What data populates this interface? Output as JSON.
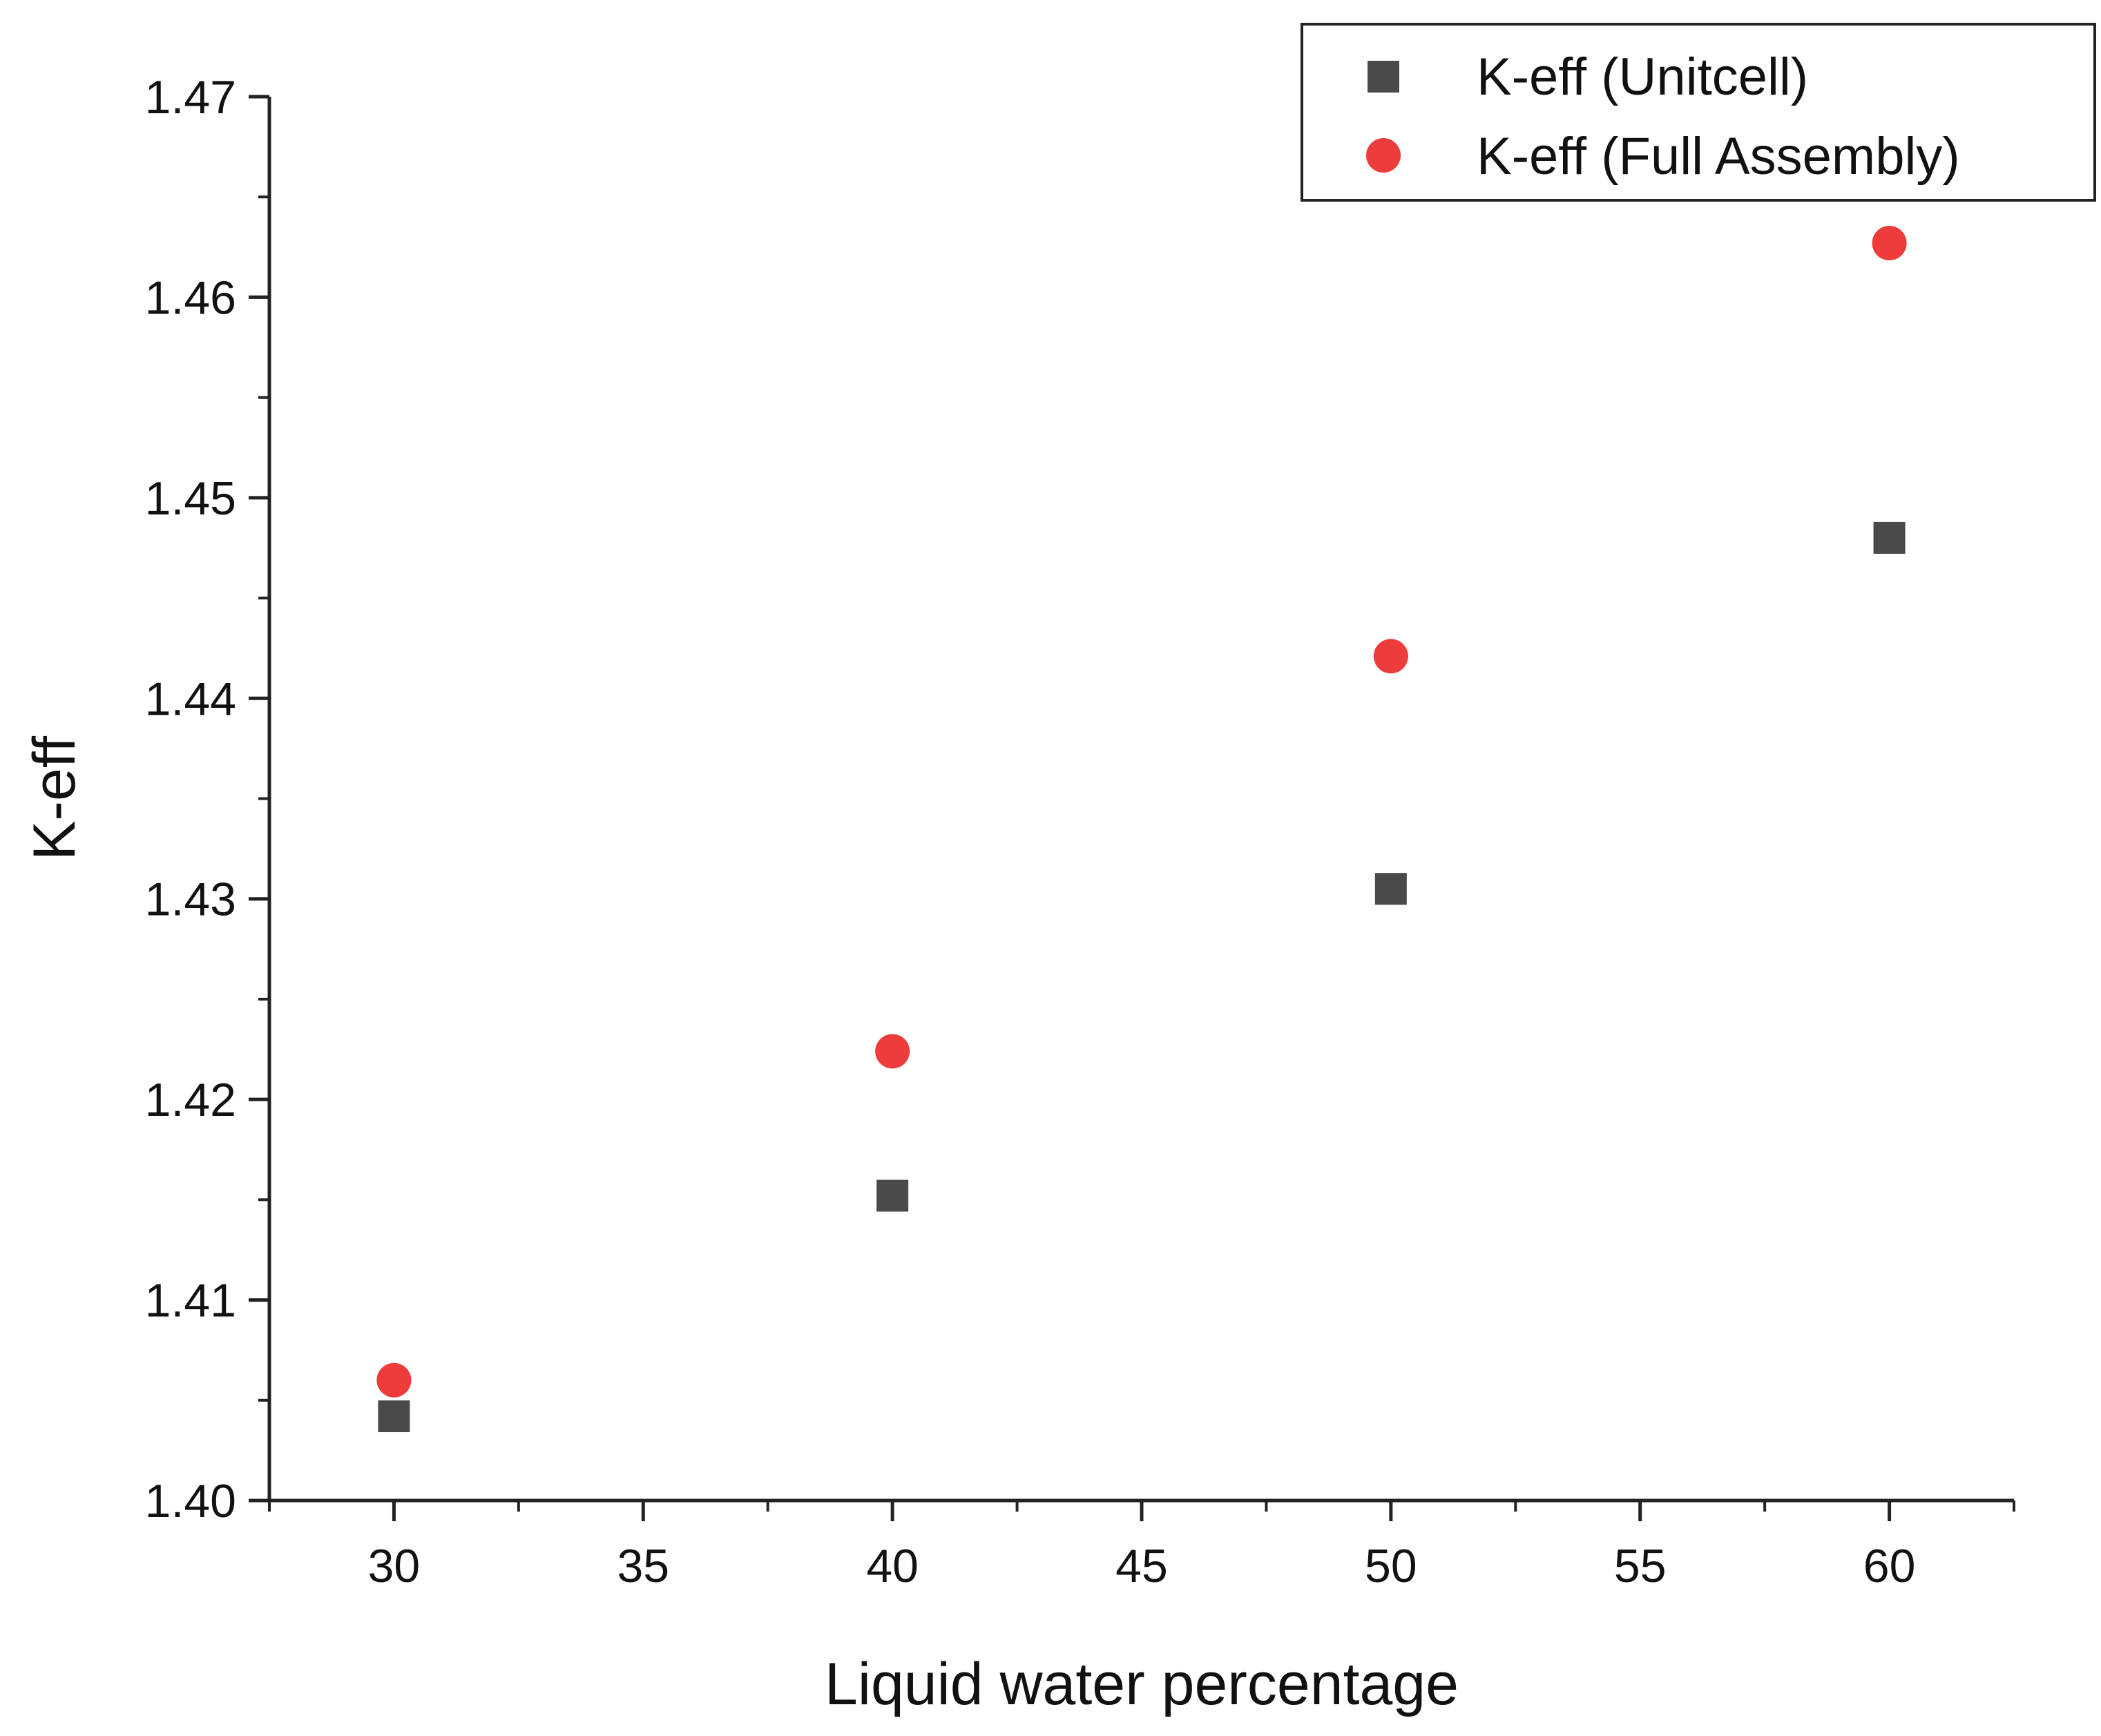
{
  "chart_data": {
    "type": "scatter",
    "title": "",
    "xlabel": "Liquid water percentage",
    "ylabel": "K-eff",
    "xlim": [
      27.5,
      62.5
    ],
    "ylim": [
      1.4,
      1.47
    ],
    "xticks": [
      30,
      35,
      40,
      45,
      50,
      55,
      60
    ],
    "yticks": [
      1.4,
      1.41,
      1.42,
      1.43,
      1.44,
      1.45,
      1.46,
      1.47
    ],
    "xtick_labels": [
      "30",
      "35",
      "40",
      "45",
      "50",
      "55",
      "60"
    ],
    "ytick_labels": [
      "1.40",
      "1.41",
      "1.42",
      "1.43",
      "1.44",
      "1.45",
      "1.46",
      "1.47"
    ],
    "grid": false,
    "legend_position": "top-right",
    "series": [
      {
        "name": "K-eff (Unitcell)",
        "marker": "square",
        "color": "#4a4a4a",
        "x": [
          30,
          40,
          50,
          60
        ],
        "y": [
          1.4042,
          1.4152,
          1.4305,
          1.448
        ]
      },
      {
        "name": "K-eff (Full Assembly)",
        "marker": "circle",
        "color": "#ee3b3b",
        "x": [
          30,
          40,
          50,
          60
        ],
        "y": [
          1.406,
          1.4224,
          1.4421,
          1.4627
        ]
      }
    ]
  }
}
